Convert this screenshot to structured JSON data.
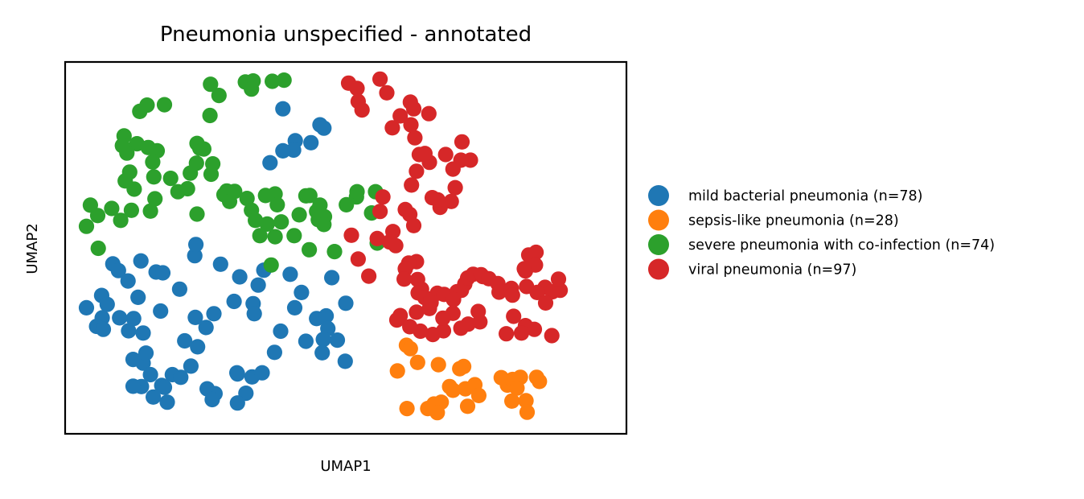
{
  "chart_data": {
    "type": "scatter",
    "title": "Pneumonia unspecified - annotated",
    "xlabel": "UMAP1",
    "ylabel": "UMAP2",
    "xlim": [
      0,
      100
    ],
    "ylim": [
      0,
      100
    ],
    "ticks_visible": false,
    "grid": false,
    "legend_position": "right, outside plot",
    "series": [
      {
        "name": "mild bacterial pneumonia (n=78)",
        "color": "#1f77b4",
        "points": [
          [
            38.8,
            87.4
          ],
          [
            36.5,
            72.9
          ],
          [
            45.4,
            83.1
          ],
          [
            41.0,
            78.8
          ],
          [
            40.7,
            76.3
          ],
          [
            43.8,
            78.3
          ],
          [
            38.8,
            76.1
          ],
          [
            46.1,
            82.2
          ],
          [
            23.1,
            47.9
          ],
          [
            23.3,
            50.9
          ],
          [
            16.2,
            43.5
          ],
          [
            17.4,
            43.3
          ],
          [
            27.7,
            45.6
          ],
          [
            31.1,
            42.2
          ],
          [
            35.4,
            44.0
          ],
          [
            34.4,
            40.0
          ],
          [
            33.5,
            35.0
          ],
          [
            30.1,
            35.6
          ],
          [
            33.7,
            32.3
          ],
          [
            40.1,
            42.9
          ],
          [
            42.1,
            38.0
          ],
          [
            40.9,
            33.9
          ],
          [
            47.5,
            42.0
          ],
          [
            44.8,
            31.0
          ],
          [
            50.0,
            35.1
          ],
          [
            46.5,
            31.7
          ],
          [
            46.8,
            28.3
          ],
          [
            46.0,
            25.4
          ],
          [
            42.9,
            24.9
          ],
          [
            48.5,
            25.2
          ],
          [
            45.8,
            21.8
          ],
          [
            38.4,
            27.6
          ],
          [
            23.6,
            23.4
          ],
          [
            25.1,
            28.6
          ],
          [
            26.5,
            32.3
          ],
          [
            23.2,
            31.3
          ],
          [
            20.4,
            38.9
          ],
          [
            17.0,
            33.0
          ],
          [
            13.0,
            36.7
          ],
          [
            12.2,
            31.0
          ],
          [
            6.5,
            37.2
          ],
          [
            7.5,
            34.8
          ],
          [
            9.7,
            31.2
          ],
          [
            11.2,
            41.1
          ],
          [
            13.5,
            46.5
          ],
          [
            8.5,
            45.7
          ],
          [
            9.5,
            43.9
          ],
          [
            6.6,
            31.2
          ],
          [
            3.8,
            33.9
          ],
          [
            5.6,
            28.9
          ],
          [
            6.8,
            28.1
          ],
          [
            11.3,
            27.7
          ],
          [
            13.9,
            27.1
          ],
          [
            12.1,
            20.0
          ],
          [
            13.9,
            19.0
          ],
          [
            21.3,
            25.0
          ],
          [
            17.2,
            13.0
          ],
          [
            14.4,
            21.7
          ],
          [
            15.2,
            15.9
          ],
          [
            19.1,
            15.9
          ],
          [
            20.6,
            15.2
          ],
          [
            22.4,
            18.2
          ],
          [
            25.3,
            12.1
          ],
          [
            26.7,
            10.8
          ],
          [
            17.7,
            12.5
          ],
          [
            18.2,
            8.5
          ],
          [
            15.7,
            9.9
          ],
          [
            13.6,
            12.7
          ],
          [
            12.1,
            12.8
          ],
          [
            30.6,
            16.4
          ],
          [
            30.7,
            16.1
          ],
          [
            33.3,
            15.3
          ],
          [
            32.2,
            10.9
          ],
          [
            35.1,
            16.4
          ],
          [
            26.2,
            9.2
          ],
          [
            30.7,
            8.3
          ],
          [
            37.3,
            21.9
          ],
          [
            49.9,
            19.5
          ]
        ]
      },
      {
        "name": "sepsis-like pneumonia (n=28)",
        "color": "#ff7f0e",
        "points": [
          [
            59.2,
            16.9
          ],
          [
            60.8,
            23.8
          ],
          [
            61.5,
            22.9
          ],
          [
            62.8,
            19.2
          ],
          [
            66.5,
            18.6
          ],
          [
            68.5,
            12.7
          ],
          [
            71.3,
            12.1
          ],
          [
            73.0,
            13.2
          ],
          [
            69.1,
            11.7
          ],
          [
            67.0,
            8.5
          ],
          [
            65.7,
            8.0
          ],
          [
            71.7,
            7.4
          ],
          [
            73.7,
            10.3
          ],
          [
            71.0,
            18.1
          ],
          [
            70.3,
            17.5
          ],
          [
            64.6,
            6.8
          ],
          [
            60.9,
            6.8
          ],
          [
            66.3,
            5.7
          ],
          [
            78.8,
            13.1
          ],
          [
            77.7,
            15.1
          ],
          [
            79.7,
            14.6
          ],
          [
            81.1,
            15.2
          ],
          [
            80.5,
            12.3
          ],
          [
            79.6,
            8.8
          ],
          [
            82.1,
            8.9
          ],
          [
            82.3,
            5.8
          ],
          [
            84.0,
            15.2
          ],
          [
            84.5,
            14.1
          ]
        ]
      },
      {
        "name": "severe pneumonia with co-infection (n=74)",
        "color": "#2ca02c",
        "points": [
          [
            25.9,
            94.0
          ],
          [
            27.4,
            91.0
          ],
          [
            32.1,
            94.6
          ],
          [
            33.5,
            94.9
          ],
          [
            33.2,
            92.7
          ],
          [
            36.9,
            94.8
          ],
          [
            39.0,
            95.1
          ],
          [
            25.8,
            85.6
          ],
          [
            17.7,
            88.5
          ],
          [
            14.6,
            88.4
          ],
          [
            13.3,
            86.7
          ],
          [
            10.5,
            80.1
          ],
          [
            12.8,
            78.0
          ],
          [
            10.2,
            77.5
          ],
          [
            11.0,
            75.5
          ],
          [
            14.8,
            77.0
          ],
          [
            16.4,
            76.1
          ],
          [
            15.6,
            73.1
          ],
          [
            11.5,
            70.4
          ],
          [
            10.7,
            68.0
          ],
          [
            12.3,
            65.8
          ],
          [
            15.2,
            59.9
          ],
          [
            16.0,
            63.2
          ],
          [
            15.8,
            69.1
          ],
          [
            18.8,
            68.7
          ],
          [
            20.1,
            65.1
          ],
          [
            21.8,
            65.9
          ],
          [
            22.3,
            70.1
          ],
          [
            23.4,
            72.8
          ],
          [
            24.0,
            76.8
          ],
          [
            23.5,
            78.1
          ],
          [
            24.7,
            76.6
          ],
          [
            26.3,
            72.6
          ],
          [
            26.0,
            69.8
          ],
          [
            28.3,
            64.3
          ],
          [
            28.8,
            65.3
          ],
          [
            29.3,
            62.5
          ],
          [
            30.2,
            65.2
          ],
          [
            32.4,
            63.3
          ],
          [
            33.2,
            60.1
          ],
          [
            35.7,
            64.1
          ],
          [
            37.4,
            64.5
          ],
          [
            37.8,
            61.6
          ],
          [
            36.0,
            56.4
          ],
          [
            33.9,
            57.4
          ],
          [
            34.7,
            53.3
          ],
          [
            37.4,
            53.0
          ],
          [
            38.5,
            57.0
          ],
          [
            41.7,
            58.9
          ],
          [
            42.9,
            64.0
          ],
          [
            43.6,
            64.1
          ],
          [
            45.4,
            61.5
          ],
          [
            44.8,
            59.8
          ],
          [
            45.1,
            57.6
          ],
          [
            46.2,
            58.4
          ],
          [
            40.8,
            53.3
          ],
          [
            43.5,
            49.5
          ],
          [
            46.1,
            56.3
          ],
          [
            48.0,
            49.0
          ],
          [
            50.1,
            61.6
          ],
          [
            51.9,
            63.7
          ],
          [
            52.0,
            65.1
          ],
          [
            55.3,
            65.1
          ],
          [
            54.6,
            59.4
          ],
          [
            55.6,
            51.3
          ],
          [
            36.7,
            45.4
          ],
          [
            9.9,
            57.4
          ],
          [
            11.8,
            60.1
          ],
          [
            8.3,
            60.6
          ],
          [
            5.8,
            58.7
          ],
          [
            4.5,
            61.5
          ],
          [
            3.8,
            55.8
          ],
          [
            5.9,
            49.9
          ],
          [
            23.5,
            59.1
          ]
        ]
      },
      {
        "name": "viral pneumonia (n=97)",
        "color": "#d62728",
        "points": [
          [
            50.5,
            94.3
          ],
          [
            56.1,
            95.4
          ],
          [
            52.0,
            92.9
          ],
          [
            52.2,
            89.4
          ],
          [
            52.9,
            87.1
          ],
          [
            57.3,
            91.7
          ],
          [
            61.5,
            89.2
          ],
          [
            58.3,
            82.3
          ],
          [
            59.7,
            85.5
          ],
          [
            61.6,
            83.1
          ],
          [
            62.1,
            87.4
          ],
          [
            64.8,
            86.1
          ],
          [
            62.3,
            79.6
          ],
          [
            64.9,
            73.0
          ],
          [
            63.1,
            75.1
          ],
          [
            64.1,
            75.4
          ],
          [
            62.6,
            70.6
          ],
          [
            61.7,
            66.9
          ],
          [
            67.8,
            75.1
          ],
          [
            70.7,
            78.5
          ],
          [
            72.2,
            73.6
          ],
          [
            70.5,
            73.6
          ],
          [
            69.1,
            71.2
          ],
          [
            69.5,
            66.2
          ],
          [
            68.8,
            62.5
          ],
          [
            66.8,
            60.9
          ],
          [
            66.4,
            62.9
          ],
          [
            65.4,
            63.5
          ],
          [
            61.4,
            59.0
          ],
          [
            62.1,
            56.0
          ],
          [
            60.6,
            60.3
          ],
          [
            58.4,
            54.4
          ],
          [
            56.1,
            59.8
          ],
          [
            56.6,
            63.7
          ],
          [
            51.0,
            53.4
          ],
          [
            52.2,
            47.0
          ],
          [
            54.1,
            42.4
          ],
          [
            55.6,
            52.5
          ],
          [
            57.8,
            51.6
          ],
          [
            58.9,
            50.6
          ],
          [
            62.6,
            46.3
          ],
          [
            61.2,
            45.9
          ],
          [
            60.6,
            44.4
          ],
          [
            62.8,
            41.5
          ],
          [
            60.4,
            41.6
          ],
          [
            63.5,
            38.9
          ],
          [
            62.9,
            37.9
          ],
          [
            64.1,
            36.6
          ],
          [
            65.2,
            36.3
          ],
          [
            66.3,
            37.8
          ],
          [
            67.5,
            37.5
          ],
          [
            70.6,
            38.6
          ],
          [
            69.8,
            38.2
          ],
          [
            69.2,
            36.1
          ],
          [
            71.2,
            40.3
          ],
          [
            71.7,
            41.9
          ],
          [
            72.7,
            42.9
          ],
          [
            74.1,
            42.8
          ],
          [
            74.4,
            42.3
          ],
          [
            75.5,
            41.7
          ],
          [
            77.1,
            40.4
          ],
          [
            77.3,
            38.1
          ],
          [
            79.5,
            39.1
          ],
          [
            79.7,
            37.3
          ],
          [
            82.2,
            39.6
          ],
          [
            82.0,
            43.8
          ],
          [
            82.6,
            48.1
          ],
          [
            83.9,
            48.8
          ],
          [
            83.8,
            45.4
          ],
          [
            81.8,
            44.4
          ],
          [
            85.5,
            39.4
          ],
          [
            84.1,
            38.0
          ],
          [
            86.8,
            38.2
          ],
          [
            88.2,
            38.6
          ],
          [
            87.9,
            41.6
          ],
          [
            85.6,
            35.2
          ],
          [
            82.0,
            29.1
          ],
          [
            83.6,
            28.1
          ],
          [
            81.3,
            27.1
          ],
          [
            86.7,
            26.4
          ],
          [
            78.6,
            26.9
          ],
          [
            79.9,
            31.6
          ],
          [
            73.9,
            30.1
          ],
          [
            71.8,
            29.5
          ],
          [
            70.5,
            28.4
          ],
          [
            67.4,
            27.7
          ],
          [
            65.5,
            26.7
          ],
          [
            63.3,
            27.6
          ],
          [
            73.6,
            32.9
          ],
          [
            69.1,
            32.4
          ],
          [
            67.3,
            31.1
          ],
          [
            59.7,
            31.8
          ],
          [
            59.1,
            30.6
          ],
          [
            61.4,
            28.8
          ],
          [
            62.6,
            32.7
          ],
          [
            64.9,
            33.7
          ],
          [
            65.2,
            35.3
          ]
        ]
      }
    ]
  }
}
